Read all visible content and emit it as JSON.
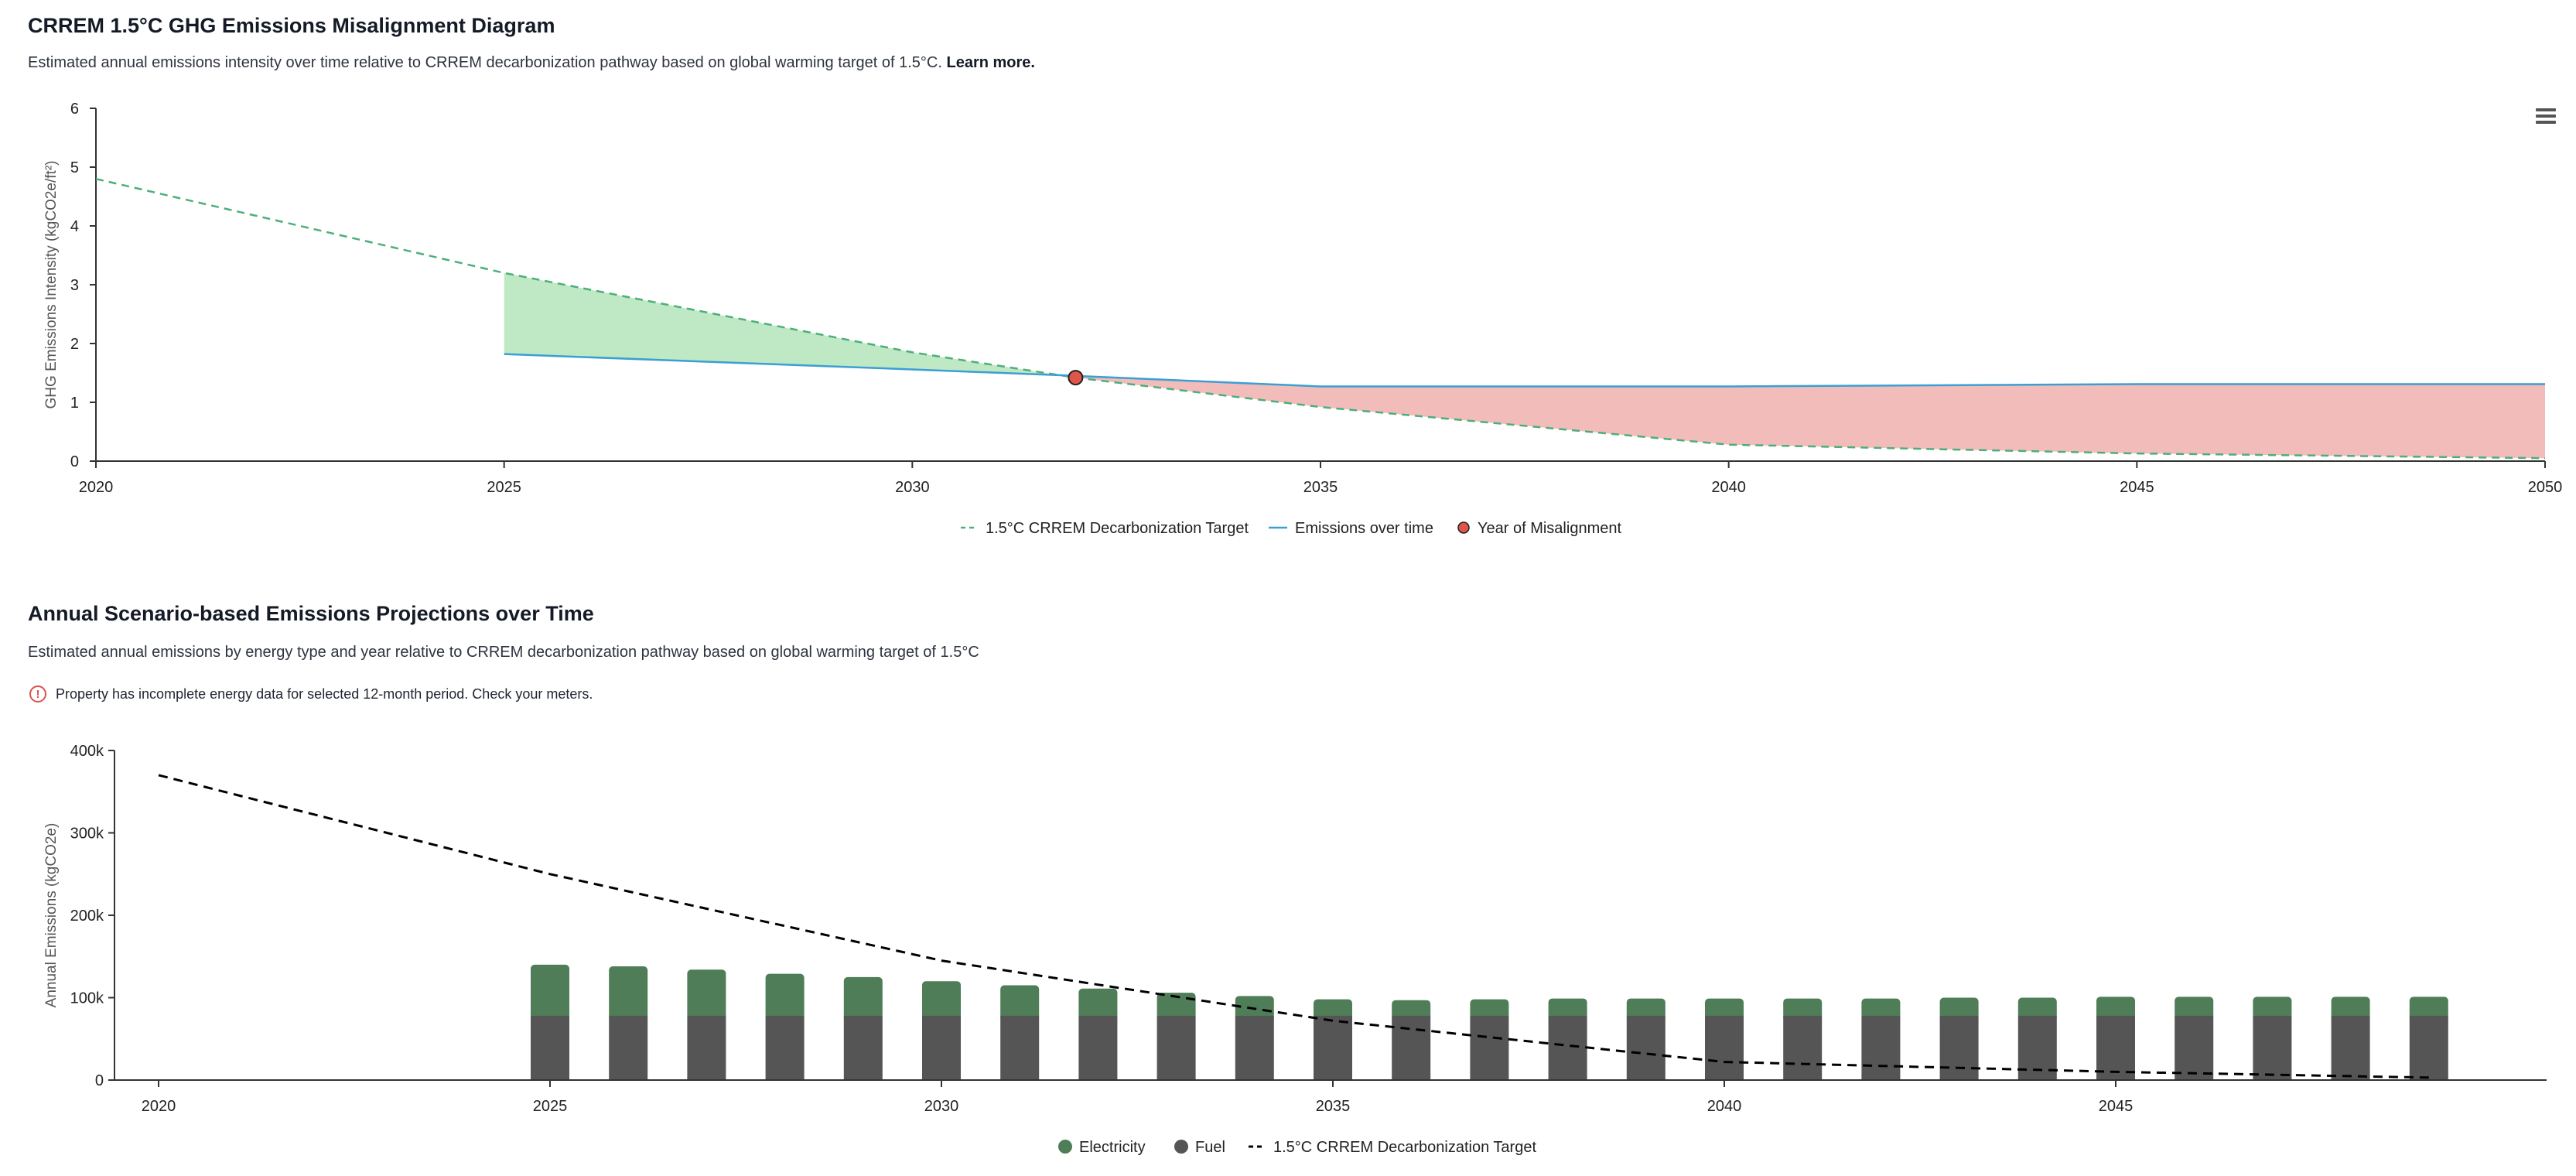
{
  "section1": {
    "title": "CRREM 1.5°C GHG Emissions Misalignment Diagram",
    "subtitle": "Estimated annual emissions intensity over time relative to CRREM decarbonization pathway based on global warming target of 1.5°C.",
    "learn_more": "Learn more."
  },
  "section2": {
    "title": "Annual Scenario-based Emissions Projections over Time",
    "subtitle": "Estimated annual emissions by energy type and year relative to CRREM decarbonization pathway based on global warming target of 1.5°C",
    "warning": "Property has incomplete energy data for selected 12-month period. Check your meters.",
    "warning_icon": "exclamation-circle-icon"
  },
  "menu_icon": "hamburger-menu-icon",
  "chart_data": [
    {
      "type": "line",
      "ylabel": "GHG Emissions Intensity (kgCO2e/ft²)",
      "xlim": [
        2020,
        2050
      ],
      "ylim": [
        0,
        6
      ],
      "xticks": [
        "2020",
        "2025",
        "2030",
        "2035",
        "2040",
        "2045",
        "2050"
      ],
      "yticks": [
        "0",
        "1",
        "2",
        "3",
        "4",
        "5",
        "6"
      ],
      "grid": false,
      "legend_position": "bottom-center",
      "series": [
        {
          "name": "1.5°C CRREM Decarbonization Target",
          "color": "#4caf7a",
          "style": "dashed",
          "x": [
            2020,
            2025,
            2030,
            2032,
            2035,
            2040,
            2045,
            2050
          ],
          "y": [
            4.8,
            3.2,
            1.85,
            1.42,
            0.92,
            0.28,
            0.13,
            0.05
          ]
        },
        {
          "name": "Emissions over time",
          "color": "#3a9fd4",
          "style": "solid",
          "x": [
            2025,
            2030,
            2032,
            2035,
            2040,
            2045,
            2050
          ],
          "y": [
            1.82,
            1.56,
            1.45,
            1.27,
            1.27,
            1.31,
            1.31
          ]
        },
        {
          "name": "Year of Misalignment",
          "color": "#e0554a",
          "style": "marker",
          "x": [
            2032
          ],
          "y": [
            1.42
          ]
        }
      ]
    },
    {
      "type": "bar",
      "ylabel": "Annual Emissions (kgCO2e)",
      "ylim": [
        0,
        400000
      ],
      "yticks": [
        "0",
        "100k",
        "200k",
        "300k",
        "400k"
      ],
      "xticks": [
        "2020",
        "2025",
        "2030",
        "2035",
        "2040",
        "2045"
      ],
      "grid": false,
      "stacked": true,
      "legend_position": "bottom-center",
      "categories": [
        2020,
        2021,
        2022,
        2023,
        2024,
        2025,
        2026,
        2027,
        2028,
        2029,
        2030,
        2031,
        2032,
        2033,
        2034,
        2035,
        2036,
        2037,
        2038,
        2039,
        2040,
        2041,
        2042,
        2043,
        2044,
        2045,
        2046,
        2047,
        2048,
        2049
      ],
      "series": [
        {
          "name": "Fuel",
          "color": "#555555",
          "values": [
            0,
            0,
            0,
            0,
            0,
            78000,
            78000,
            78000,
            78000,
            78000,
            78000,
            78000,
            78000,
            78000,
            78000,
            78000,
            78000,
            78000,
            78000,
            78000,
            78000,
            78000,
            78000,
            78000,
            78000,
            78000,
            78000,
            78000,
            78000,
            78000
          ]
        },
        {
          "name": "Electricity",
          "color": "#4e7d57",
          "values": [
            0,
            0,
            0,
            0,
            0,
            62000,
            60000,
            56000,
            51000,
            47000,
            42000,
            37000,
            33000,
            28000,
            24000,
            20000,
            19000,
            20000,
            21000,
            21000,
            21000,
            21000,
            21000,
            22000,
            22000,
            23000,
            23000,
            23000,
            23000,
            23000
          ]
        },
        {
          "name": "1.5°C CRREM Decarbonization Target",
          "color": "#000000",
          "style": "dashed",
          "x": [
            2020,
            2025,
            2030,
            2035,
            2040,
            2045,
            2049
          ],
          "values": [
            370000,
            250000,
            145000,
            72000,
            22000,
            10000,
            3000
          ]
        }
      ]
    }
  ]
}
